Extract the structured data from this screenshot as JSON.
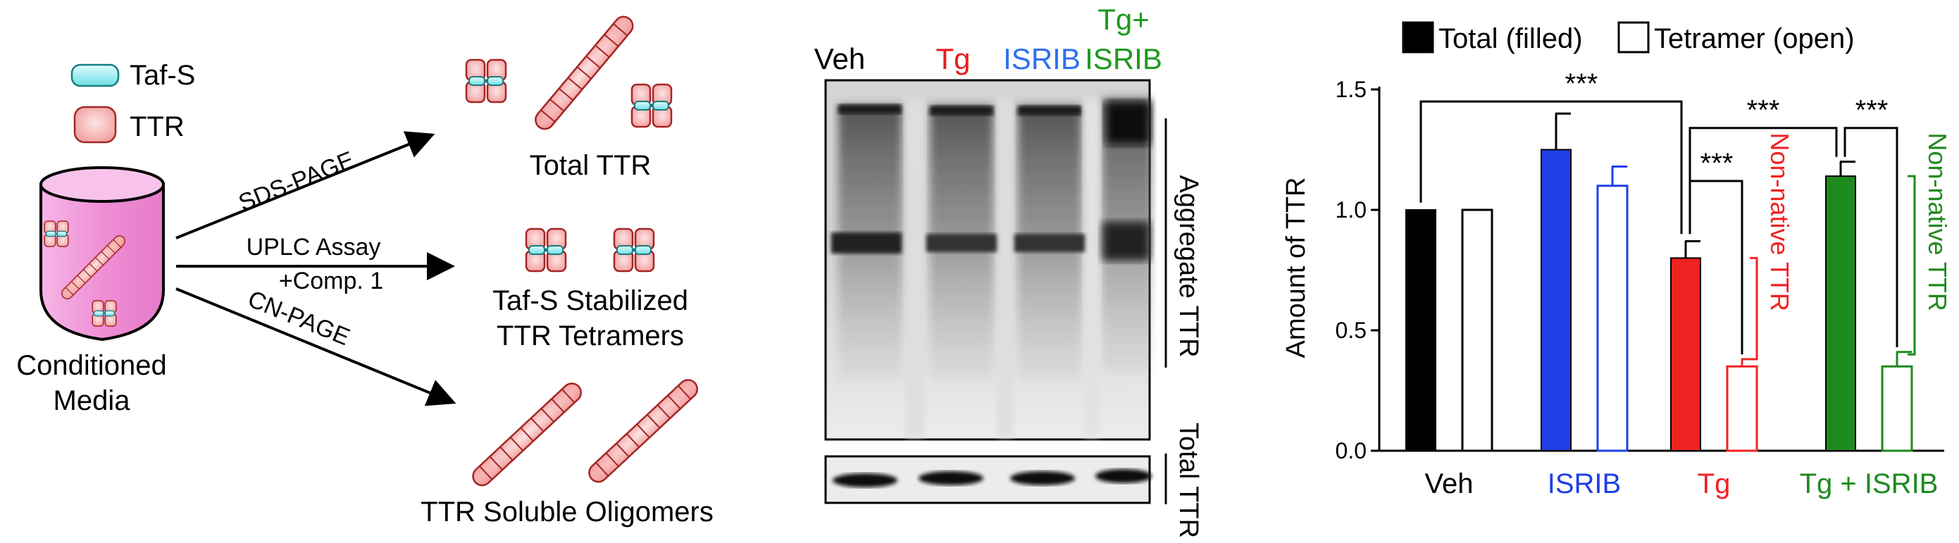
{
  "schematic": {
    "legend": {
      "taf_label": "Taf-S",
      "ttr_label": "TTR"
    },
    "media_label_line1": "Conditioned",
    "media_label_line2": "Media",
    "assays": [
      {
        "label_line1": "SDS-PAGE",
        "label_line2": "",
        "product_line1": "Total TTR",
        "product_line2": ""
      },
      {
        "label_line1": "UPLC Assay",
        "label_line2": "+Comp. 1",
        "product_line1": "Taf-S Stabilized",
        "product_line2": "TTR Tetramers"
      },
      {
        "label_line1": "CN-PAGE",
        "label_line2": "",
        "product_line1": "TTR Soluble Oligomers",
        "product_line2": ""
      }
    ],
    "colors": {
      "ttr_fill": "#f4a3a3",
      "ttr_stroke": "#a32626",
      "taf_fill": "#9ff0f3",
      "media_fill": "#f1a0dc"
    }
  },
  "blot": {
    "lanes": [
      {
        "line1": "Veh",
        "line2": "",
        "color": "#000000"
      },
      {
        "line1": "Tg",
        "line2": "",
        "color": "#e81c1c"
      },
      {
        "line1": "ISRIB",
        "line2": "",
        "color": "#2f6ff0"
      },
      {
        "line1": "Tg+",
        "line2": "ISRIB",
        "color": "#1e9a1e"
      }
    ],
    "aggregate_label": "Aggregate TTR",
    "total_label": "Total TTR"
  },
  "chart_data": {
    "type": "bar",
    "title": "",
    "xlabel": "",
    "ylabel": "Amount of TTR",
    "ylim": [
      0,
      1.5
    ],
    "yticks": [
      "0.0",
      "0.5",
      "1.0",
      "1.5"
    ],
    "legend": [
      {
        "label": "Total (filled)",
        "style": "filled"
      },
      {
        "label": "Tetramer (open)",
        "style": "open"
      }
    ],
    "groups": [
      {
        "label": "Veh",
        "color": "#000000",
        "filled": 1.0,
        "filled_err": 0.0,
        "open": 1.0,
        "open_err": 0.0
      },
      {
        "label": "ISRIB",
        "color": "#1f3fe8",
        "filled": 1.25,
        "filled_err": 0.15,
        "open": 1.1,
        "open_err": 0.08
      },
      {
        "label": "Tg",
        "color": "#f02222",
        "filled": 0.8,
        "filled_err": 0.07,
        "open": 0.35,
        "open_err": 0.03
      },
      {
        "label": "Tg + ISRIB",
        "color": "#1e8a1e",
        "filled": 1.14,
        "filled_err": 0.06,
        "open": 0.35,
        "open_err": 0.06
      }
    ],
    "significance": [
      "***",
      "***",
      "***",
      "***"
    ],
    "annotations": [
      {
        "text": "Non-native TTR",
        "group": "Tg"
      },
      {
        "text": "Non-native TTR",
        "group": "Tg + ISRIB"
      }
    ]
  }
}
